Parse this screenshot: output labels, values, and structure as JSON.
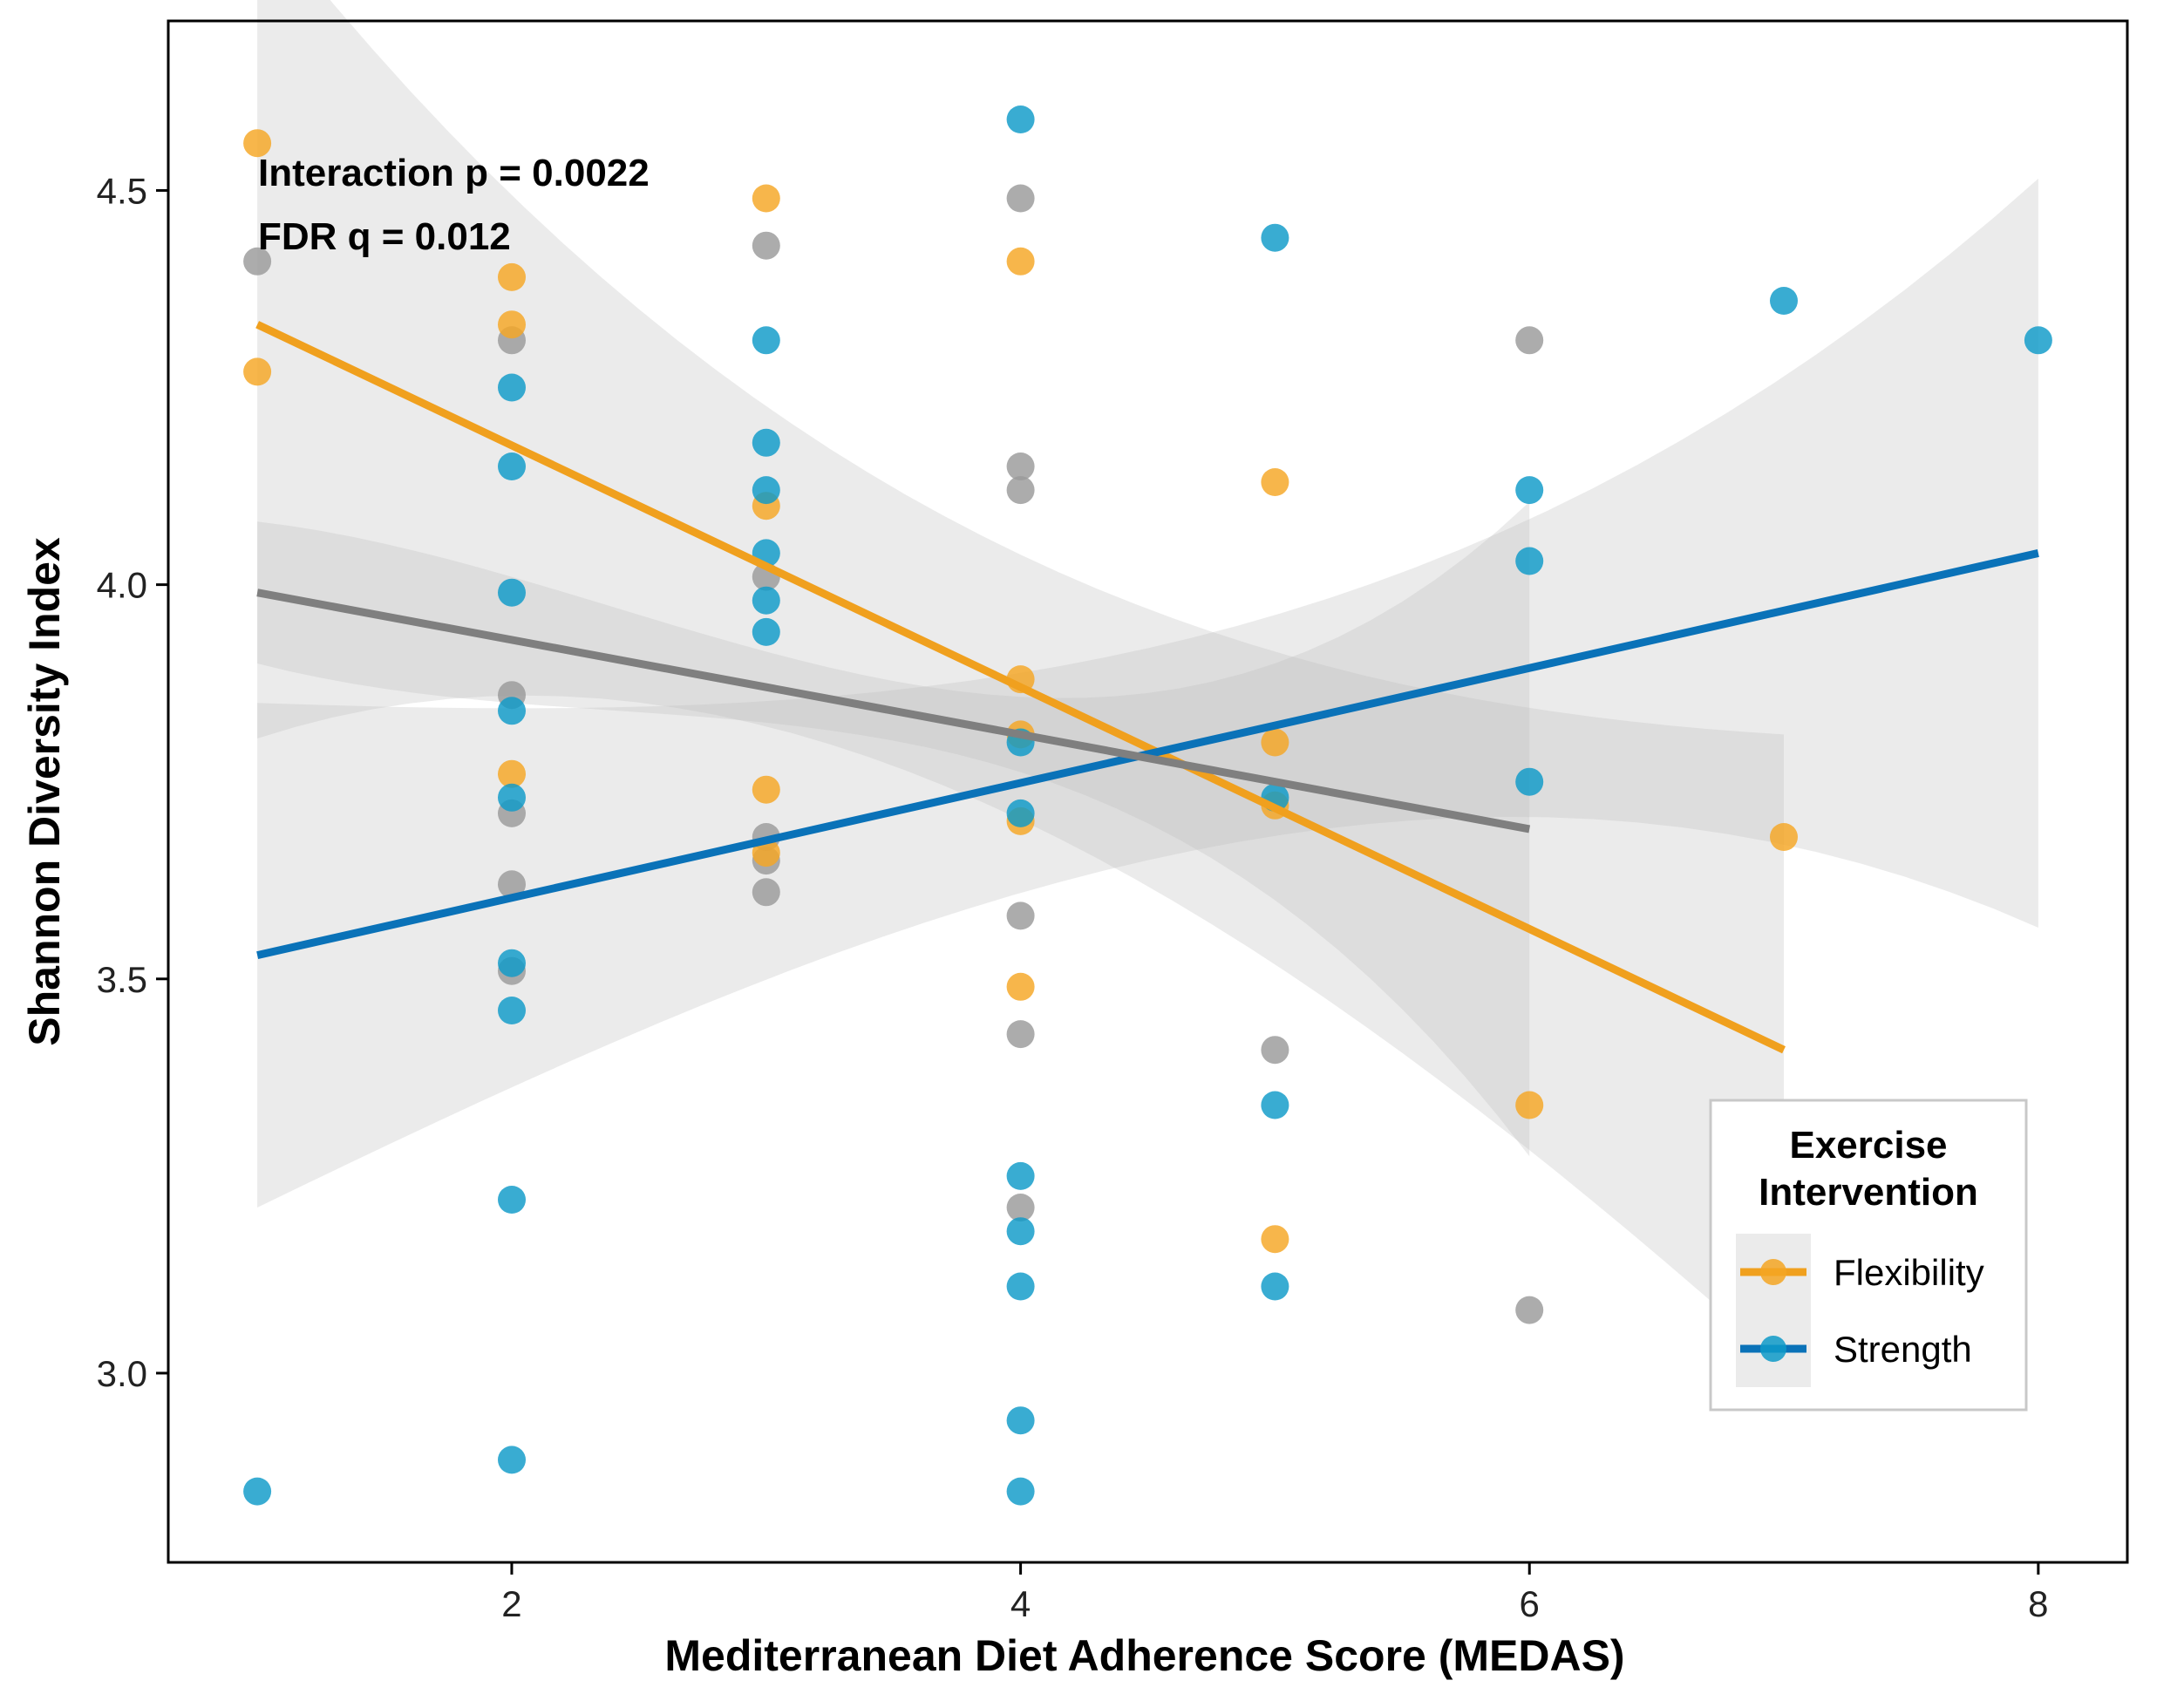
{
  "chart_data": {
    "type": "scatter",
    "xlabel": "Mediterranean Diet Adherence Score (MEDAS)",
    "ylabel": "Shannon Diversity Index",
    "xlim": [
      0.65,
      8.35
    ],
    "ylim": [
      2.76,
      4.715
    ],
    "x_ticks": [
      2,
      4,
      6,
      8
    ],
    "y_ticks": [
      3.0,
      3.5,
      4.0,
      4.5
    ],
    "y_tick_labels": [
      "3.0",
      "3.5",
      "4.0",
      "4.5"
    ],
    "grid": false,
    "legend_position": "bottom-right",
    "legend_title": [
      "Exercise",
      "Intervention"
    ],
    "annotations": [
      "Interaction p = 0.0022",
      "FDR q = 0.012"
    ],
    "colors": {
      "flexibility": "#f5a623",
      "strength": "#0e9ac8",
      "other_points": "#9a9a9a",
      "flexibility_line": "#f0a01e",
      "strength_line": "#0a72b8",
      "other_line": "#7f7f7f",
      "band": "#bdbdbd"
    },
    "series": [
      {
        "name": "Flexibility",
        "points": [
          [
            1,
            4.56
          ],
          [
            1,
            4.27
          ],
          [
            2,
            4.39
          ],
          [
            2,
            4.33
          ],
          [
            2,
            3.76
          ],
          [
            3,
            4.49
          ],
          [
            3,
            4.1
          ],
          [
            3,
            3.74
          ],
          [
            3,
            3.66
          ],
          [
            4,
            4.41
          ],
          [
            4,
            3.88
          ],
          [
            4,
            3.81
          ],
          [
            4,
            3.7
          ],
          [
            4,
            3.49
          ],
          [
            5,
            4.13
          ],
          [
            5,
            3.8
          ],
          [
            5,
            3.72
          ],
          [
            5,
            3.17
          ],
          [
            6,
            3.34
          ],
          [
            7,
            3.68
          ]
        ],
        "fit": {
          "x": [
            1,
            7
          ],
          "y": [
            4.33,
            3.41
          ]
        },
        "ci": {
          "x": [
            1,
            7
          ],
          "lower": [
            3.59,
            2.99
          ],
          "upper": [
            4.64,
            3.79
          ]
        }
      },
      {
        "name": "Strength",
        "points": [
          [
            1,
            2.85
          ],
          [
            2,
            4.25
          ],
          [
            2,
            4.15
          ],
          [
            2,
            3.99
          ],
          [
            2,
            3.84
          ],
          [
            2,
            3.73
          ],
          [
            2,
            3.52
          ],
          [
            2,
            3.46
          ],
          [
            2,
            3.22
          ],
          [
            2,
            2.89
          ],
          [
            3,
            4.31
          ],
          [
            3,
            4.18
          ],
          [
            3,
            4.12
          ],
          [
            3,
            4.04
          ],
          [
            3,
            3.98
          ],
          [
            3,
            3.94
          ],
          [
            4,
            4.59
          ],
          [
            4,
            3.8
          ],
          [
            4,
            3.71
          ],
          [
            4,
            3.25
          ],
          [
            4,
            3.18
          ],
          [
            4,
            3.11
          ],
          [
            4,
            2.94
          ],
          [
            4,
            2.85
          ],
          [
            5,
            4.44
          ],
          [
            5,
            3.73
          ],
          [
            5,
            3.34
          ],
          [
            5,
            3.11
          ],
          [
            6,
            4.12
          ],
          [
            6,
            4.03
          ],
          [
            6,
            3.75
          ],
          [
            7,
            4.36
          ],
          [
            8,
            4.31
          ]
        ],
        "fit": {
          "x": [
            1,
            8
          ],
          "y": [
            3.53,
            4.04
          ]
        },
        "ci": {
          "x": [
            1,
            8
          ],
          "lower": [
            3.21,
            3.57
          ],
          "upper": [
            3.85,
            4.52
          ]
        }
      },
      {
        "points": [
          [
            1,
            4.41
          ],
          [
            2,
            4.31
          ],
          [
            2,
            3.86
          ],
          [
            2,
            3.71
          ],
          [
            2,
            3.62
          ],
          [
            2,
            3.51
          ],
          [
            3,
            4.43
          ],
          [
            3,
            4.01
          ],
          [
            3,
            3.68
          ],
          [
            3,
            3.65
          ],
          [
            3,
            3.61
          ],
          [
            4,
            4.49
          ],
          [
            4,
            4.15
          ],
          [
            4,
            4.12
          ],
          [
            4,
            3.58
          ],
          [
            4,
            3.43
          ],
          [
            4,
            3.21
          ],
          [
            5,
            3.41
          ],
          [
            6,
            4.31
          ],
          [
            6,
            3.08
          ]
        ],
        "fit": {
          "x": [
            1,
            6
          ],
          "y": [
            3.99,
            3.69
          ]
        },
        "ci": {
          "x": [
            1,
            6
          ],
          "lower": [
            3.85,
            3.28
          ],
          "upper": [
            4.03,
            4.11
          ]
        }
      }
    ]
  }
}
